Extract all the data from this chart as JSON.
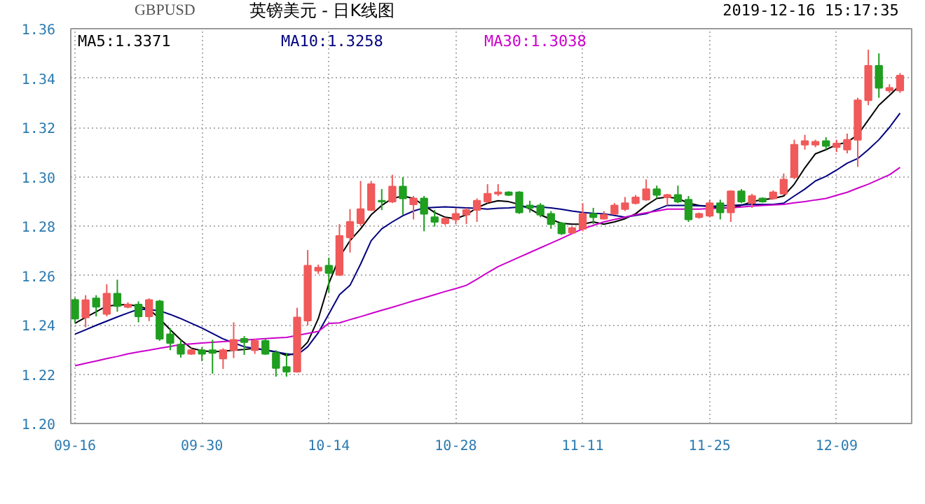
{
  "chart_data": {
    "type": "candlestick",
    "title": "英镑美元 - 日K线图",
    "subtitle": "2019-12-16 15:17:35",
    "annotations": [
      "GBPUSD"
    ],
    "categories": [
      "09-16",
      null,
      null,
      null,
      null,
      null,
      null,
      null,
      null,
      null,
      null,
      null,
      "09-30",
      null,
      null,
      null,
      null,
      null,
      null,
      null,
      null,
      null,
      null,
      null,
      "10-14",
      null,
      null,
      null,
      null,
      null,
      null,
      null,
      null,
      null,
      null,
      null,
      "10-28",
      null,
      null,
      null,
      null,
      null,
      null,
      null,
      null,
      null,
      null,
      null,
      "11-11",
      null,
      null,
      null,
      null,
      null,
      null,
      null,
      null,
      null,
      null,
      null,
      "11-25",
      null,
      null,
      null,
      null,
      null,
      null,
      null,
      null,
      null,
      null,
      null,
      "12-09",
      null,
      null,
      null,
      null,
      null,
      null
    ],
    "ohlc": [
      [
        1.2501,
        1.251,
        1.2406,
        1.2425
      ],
      [
        1.243,
        1.252,
        1.239,
        1.25
      ],
      [
        1.2507,
        1.252,
        1.2434,
        1.2473
      ],
      [
        1.2444,
        1.2564,
        1.2434,
        1.2526
      ],
      [
        1.2526,
        1.2583,
        1.2453,
        1.2476
      ],
      [
        1.2472,
        1.2491,
        1.2467,
        1.2482
      ],
      [
        1.2482,
        1.2495,
        1.241,
        1.2434
      ],
      [
        1.2434,
        1.2507,
        1.2415,
        1.2501
      ],
      [
        1.2495,
        1.2501,
        1.2335,
        1.2343
      ],
      [
        1.2362,
        1.2387,
        1.2297,
        1.2326
      ],
      [
        1.232,
        1.2339,
        1.2267,
        1.2282
      ],
      [
        1.2282,
        1.2305,
        1.2278,
        1.2297
      ],
      [
        1.2297,
        1.2309,
        1.2253,
        1.2282
      ],
      [
        1.2297,
        1.2339,
        1.2202,
        1.2286
      ],
      [
        1.2263,
        1.2305,
        1.2221,
        1.2297
      ],
      [
        1.2297,
        1.241,
        1.2265,
        1.2339
      ],
      [
        1.2343,
        1.2354,
        1.2278,
        1.233
      ],
      [
        1.2297,
        1.2343,
        1.2282,
        1.2335
      ],
      [
        1.2335,
        1.2343,
        1.2278,
        1.2282
      ],
      [
        1.2286,
        1.2297,
        1.219,
        1.2225
      ],
      [
        1.2229,
        1.2286,
        1.219,
        1.221
      ],
      [
        1.221,
        1.2469,
        1.2206,
        1.243
      ],
      [
        1.2417,
        1.2703,
        1.2398,
        1.264
      ],
      [
        1.2619,
        1.2644,
        1.2606,
        1.2632
      ],
      [
        1.264,
        1.2672,
        1.253,
        1.261
      ],
      [
        1.2602,
        1.2808,
        1.2598,
        1.276
      ],
      [
        1.2754,
        1.2869,
        1.2693,
        1.2817
      ],
      [
        1.2811,
        1.2983,
        1.28,
        1.2869
      ],
      [
        1.2865,
        1.2983,
        1.2861,
        1.297
      ],
      [
        1.2903,
        1.295,
        1.2865,
        1.2899
      ],
      [
        1.2899,
        1.3008,
        1.2893,
        1.296
      ],
      [
        1.296,
        1.2998,
        1.2846,
        1.2912
      ],
      [
        1.2888,
        1.2922,
        1.2827,
        1.2912
      ],
      [
        1.2912,
        1.2922,
        1.2779,
        1.285
      ],
      [
        1.2836,
        1.2865,
        1.2798,
        1.2817
      ],
      [
        1.2811,
        1.2836,
        1.2804,
        1.283
      ],
      [
        1.2827,
        1.2874,
        1.2808,
        1.285
      ],
      [
        1.2846,
        1.2874,
        1.2808,
        1.2865
      ],
      [
        1.2865,
        1.2912,
        1.2817,
        1.2903
      ],
      [
        1.2899,
        1.297,
        1.2893,
        1.2931
      ],
      [
        1.2931,
        1.297,
        1.2922,
        1.2937
      ],
      [
        1.2937,
        1.2941,
        1.2922,
        1.2926
      ],
      [
        1.2937,
        1.2941,
        1.285,
        1.2855
      ],
      [
        1.2884,
        1.2903,
        1.2855,
        1.2874
      ],
      [
        1.2884,
        1.2893,
        1.2836,
        1.2846
      ],
      [
        1.285,
        1.2861,
        1.2789,
        1.2808
      ],
      [
        1.2811,
        1.2817,
        1.2764,
        1.277
      ],
      [
        1.2773,
        1.2798,
        1.277,
        1.2792
      ],
      [
        1.2789,
        1.2893,
        1.2779,
        1.285
      ],
      [
        1.285,
        1.2874,
        1.2808,
        1.2836
      ],
      [
        1.283,
        1.2861,
        1.2827,
        1.2846
      ],
      [
        1.285,
        1.2893,
        1.2846,
        1.2884
      ],
      [
        1.2869,
        1.2918,
        1.2861,
        1.2893
      ],
      [
        1.2893,
        1.2926,
        1.2888,
        1.2916
      ],
      [
        1.2907,
        1.2989,
        1.2903,
        1.295
      ],
      [
        1.295,
        1.2964,
        1.2912,
        1.2926
      ],
      [
        1.2916,
        1.2931,
        1.2884,
        1.2926
      ],
      [
        1.2926,
        1.2964,
        1.2893,
        1.2899
      ],
      [
        1.2907,
        1.2922,
        1.2817,
        1.2827
      ],
      [
        1.2836,
        1.2855,
        1.283,
        1.285
      ],
      [
        1.2842,
        1.2907,
        1.2836,
        1.2893
      ],
      [
        1.2893,
        1.2907,
        1.2827,
        1.2855
      ],
      [
        1.2855,
        1.2945,
        1.2817,
        1.2941
      ],
      [
        1.2941,
        1.295,
        1.2893,
        1.2899
      ],
      [
        1.2893,
        1.2931,
        1.2874,
        1.2922
      ],
      [
        1.2912,
        1.2916,
        1.2895,
        1.2899
      ],
      [
        1.2912,
        1.2945,
        1.2907,
        1.2937
      ],
      [
        1.2931,
        1.3013,
        1.2926,
        1.2989
      ],
      [
        1.2998,
        1.315,
        1.299,
        1.313
      ],
      [
        1.313,
        1.317,
        1.311,
        1.3145
      ],
      [
        1.313,
        1.315,
        1.312,
        1.3142
      ],
      [
        1.3145,
        1.316,
        1.311,
        1.3125
      ],
      [
        1.312,
        1.315,
        1.31,
        1.3135
      ],
      [
        1.311,
        1.3175,
        1.3095,
        1.315
      ],
      [
        1.315,
        1.332,
        1.304,
        1.331
      ],
      [
        1.331,
        1.3515,
        1.329,
        1.345
      ],
      [
        1.345,
        1.35,
        1.332,
        1.336
      ],
      [
        1.335,
        1.3375,
        1.334,
        1.336
      ],
      [
        1.335,
        1.342,
        1.334,
        1.341
      ]
    ],
    "colors": [
      "#1f9e1f",
      "#f05a5a",
      "#1f9e1f",
      "#f05a5a",
      "#1f9e1f",
      "#f05a5a",
      "#1f9e1f",
      "#f05a5a",
      "#1f9e1f",
      "#1f9e1f",
      "#1f9e1f",
      "#f05a5a",
      "#1f9e1f",
      "#1f9e1f",
      "#f05a5a",
      "#f05a5a",
      "#1f9e1f",
      "#f05a5a",
      "#1f9e1f",
      "#1f9e1f",
      "#1f9e1f",
      "#f05a5a",
      "#f05a5a",
      "#f05a5a",
      "#1f9e1f",
      "#f05a5a",
      "#f05a5a",
      "#f05a5a",
      "#f05a5a",
      "#1f9e1f",
      "#f05a5a",
      "#1f9e1f",
      "#f05a5a",
      "#1f9e1f",
      "#1f9e1f",
      "#f05a5a",
      "#f05a5a",
      "#f05a5a",
      "#f05a5a",
      "#f05a5a",
      "#f05a5a",
      "#1f9e1f",
      "#1f9e1f",
      "#1f9e1f",
      "#1f9e1f",
      "#1f9e1f",
      "#1f9e1f",
      "#f05a5a",
      "#f05a5a",
      "#1f9e1f",
      "#f05a5a",
      "#f05a5a",
      "#f05a5a",
      "#f05a5a",
      "#f05a5a",
      "#1f9e1f",
      "#f05a5a",
      "#1f9e1f",
      "#1f9e1f",
      "#f05a5a",
      "#f05a5a",
      "#1f9e1f",
      "#f05a5a",
      "#1f9e1f",
      "#f05a5a",
      "#1f9e1f",
      "#f05a5a",
      "#f05a5a",
      "#f05a5a",
      "#f05a5a",
      "#f05a5a",
      "#1f9e1f",
      "#f05a5a",
      "#f05a5a",
      "#f05a5a",
      "#f05a5a",
      "#1f9e1f",
      "#f05a5a",
      "#f05a5a"
    ],
    "series": [
      {
        "name": "MA5:1.3371",
        "type": "line",
        "color": "#000000",
        "values": [
          1.2406,
          1.243,
          1.2453,
          1.2476,
          1.248,
          1.2482,
          1.2475,
          1.2463,
          1.2425,
          1.238,
          1.2339,
          1.2305,
          1.2295,
          1.2291,
          1.2293,
          1.2297,
          1.23,
          1.2305,
          1.2298,
          1.2291,
          1.2276,
          1.2286,
          1.233,
          1.2425,
          1.2568,
          1.2674,
          1.2741,
          1.2789,
          1.2846,
          1.2884,
          1.2912,
          1.2922,
          1.2912,
          1.2884,
          1.2855,
          1.2836,
          1.283,
          1.2846,
          1.2874,
          1.2893,
          1.2903,
          1.2899,
          1.2888,
          1.2869,
          1.2846,
          1.2827,
          1.2811,
          1.2808,
          1.2808,
          1.2817,
          1.2808,
          1.2817,
          1.283,
          1.285,
          1.2884,
          1.2912,
          1.2918,
          1.2912,
          1.2893,
          1.2884,
          1.288,
          1.2874,
          1.2874,
          1.2884,
          1.2899,
          1.2907,
          1.2912,
          1.2922,
          1.297,
          1.3036,
          1.3093,
          1.311,
          1.313,
          1.314,
          1.317,
          1.323,
          1.329,
          1.333,
          1.3371
        ]
      },
      {
        "name": "MA10:1.3258",
        "type": "line",
        "color": "#000080",
        "values": [
          1.2362,
          1.238,
          1.2398,
          1.2415,
          1.2432,
          1.2448,
          1.2463,
          1.2462,
          1.2457,
          1.2442,
          1.2425,
          1.2406,
          1.2387,
          1.2365,
          1.2343,
          1.2327,
          1.2311,
          1.2304,
          1.2297,
          1.229,
          1.2282,
          1.2278,
          1.2311,
          1.2368,
          1.2444,
          1.2522,
          1.256,
          1.2646,
          1.2741,
          1.2789,
          1.2817,
          1.2842,
          1.2861,
          1.2874,
          1.2876,
          1.2878,
          1.2876,
          1.2874,
          1.2872,
          1.2869,
          1.2872,
          1.2874,
          1.2877,
          1.288,
          1.2877,
          1.2874,
          1.2868,
          1.2861,
          1.2855,
          1.2852,
          1.285,
          1.2843,
          1.2836,
          1.2843,
          1.285,
          1.2867,
          1.2884,
          1.2884,
          1.2884,
          1.2882,
          1.288,
          1.2882,
          1.2884,
          1.2886,
          1.2888,
          1.2888,
          1.2888,
          1.2893,
          1.2922,
          1.295,
          1.2983,
          1.3002,
          1.3027,
          1.3055,
          1.3074,
          1.311,
          1.315,
          1.32,
          1.3258
        ]
      },
      {
        "name": "MA30:1.3038",
        "type": "line",
        "color": "#cc00cc",
        "values": [
          1.2234,
          1.2244,
          1.2253,
          1.2263,
          1.2272,
          1.2282,
          1.229,
          1.2297,
          1.2305,
          1.2312,
          1.232,
          1.2323,
          1.2326,
          1.2329,
          1.2332,
          1.2335,
          1.2338,
          1.2341,
          1.2344,
          1.2347,
          1.2349,
          1.2357,
          1.2365,
          1.2373,
          1.2406,
          1.2408,
          1.2421,
          1.2433,
          1.2446,
          1.2459,
          1.2471,
          1.2484,
          1.2497,
          1.2509,
          1.2522,
          1.2535,
          1.2547,
          1.256,
          1.2585,
          1.2611,
          1.2636,
          1.2655,
          1.2674,
          1.2693,
          1.2712,
          1.2731,
          1.275,
          1.277,
          1.2789,
          1.2803,
          1.2817,
          1.2827,
          1.2836,
          1.2846,
          1.2854,
          1.2861,
          1.2869,
          1.2869,
          1.2869,
          1.2869,
          1.2871,
          1.2872,
          1.2874,
          1.2877,
          1.2881,
          1.2884,
          1.2886,
          1.2888,
          1.2894,
          1.2899,
          1.2906,
          1.2912,
          1.2925,
          1.2937,
          1.2954,
          1.297,
          1.2989,
          1.3008,
          1.3038
        ]
      }
    ],
    "ylim": [
      1.2,
      1.36
    ],
    "yticks": [
      {
        "value": 1.2,
        "label": "1.20"
      },
      {
        "value": 1.22,
        "label": "1.22"
      },
      {
        "value": 1.24,
        "label": "1.24"
      },
      {
        "value": 1.26,
        "label": "1.26"
      },
      {
        "value": 1.28,
        "label": "1.28"
      },
      {
        "value": 1.3,
        "label": "1.30"
      },
      {
        "value": 1.32,
        "label": "1.32"
      },
      {
        "value": 1.34,
        "label": "1.34"
      },
      {
        "value": 1.36,
        "label": "1.36"
      }
    ],
    "grid": true,
    "legend": "top left"
  }
}
